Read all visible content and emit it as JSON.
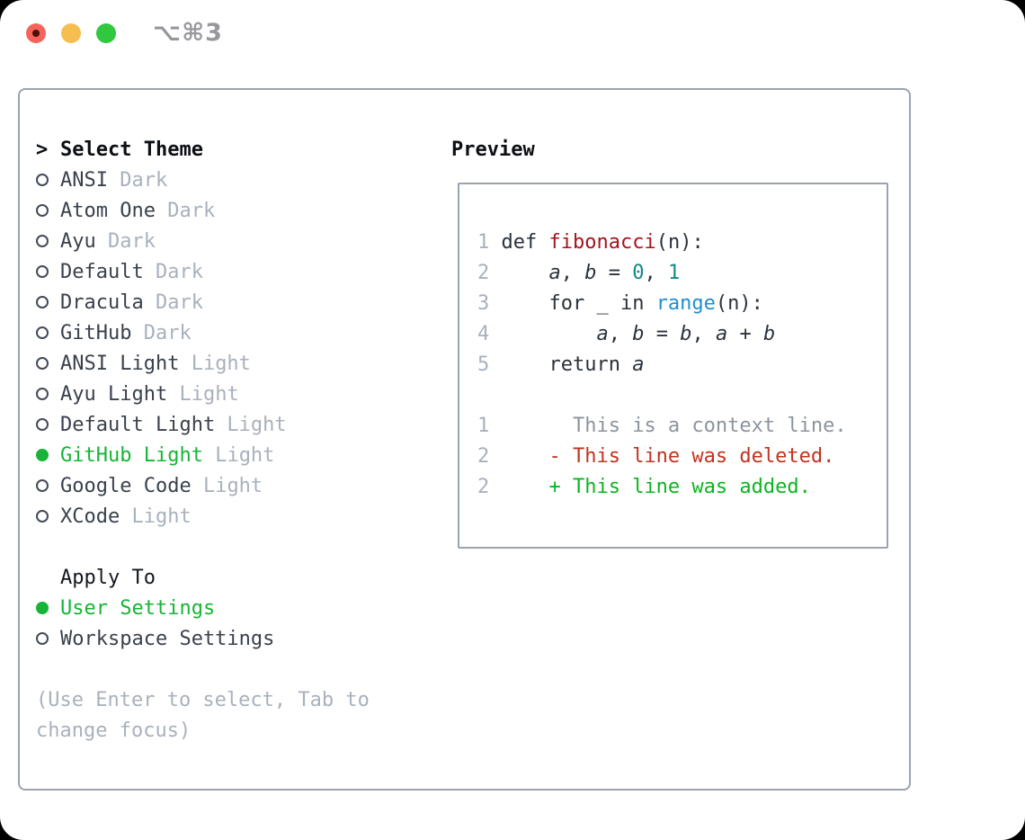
{
  "window": {
    "title": "⌥⌘3"
  },
  "titlebar": {
    "buttons": [
      {
        "name": "close-button"
      },
      {
        "name": "minimize-button"
      },
      {
        "name": "zoom-button"
      }
    ]
  },
  "theme_selector": {
    "prompt": ">",
    "title": "Select Theme",
    "items": [
      {
        "name": "ANSI",
        "variant": "Dark",
        "selected": false
      },
      {
        "name": "Atom One",
        "variant": "Dark",
        "selected": false
      },
      {
        "name": "Ayu",
        "variant": "Dark",
        "selected": false
      },
      {
        "name": "Default",
        "variant": "Dark",
        "selected": false
      },
      {
        "name": "Dracula",
        "variant": "Dark",
        "selected": false
      },
      {
        "name": "GitHub",
        "variant": "Dark",
        "selected": false
      },
      {
        "name": "ANSI Light",
        "variant": "Light",
        "selected": false
      },
      {
        "name": "Ayu Light",
        "variant": "Light",
        "selected": false
      },
      {
        "name": "Default Light",
        "variant": "Light",
        "selected": false
      },
      {
        "name": "GitHub Light",
        "variant": "Light",
        "selected": true
      },
      {
        "name": "Google Code",
        "variant": "Light",
        "selected": false
      },
      {
        "name": "XCode",
        "variant": "Light",
        "selected": false
      }
    ]
  },
  "apply_to": {
    "title": "Apply To",
    "options": [
      {
        "label": "User Settings",
        "selected": true
      },
      {
        "label": "Workspace Settings",
        "selected": false
      }
    ]
  },
  "help_text": "(Use Enter to select, Tab to change focus)",
  "preview": {
    "title": "Preview",
    "lines": [
      {
        "num": "1",
        "tokens": [
          {
            "t": "def ",
            "c": "d"
          },
          {
            "t": "fibonacci",
            "c": "fn"
          },
          {
            "t": "(n):",
            "c": "d"
          }
        ]
      },
      {
        "num": "2",
        "tokens": [
          {
            "t": "    ",
            "c": "d"
          },
          {
            "t": "a",
            "c": "var"
          },
          {
            "t": ", ",
            "c": "d"
          },
          {
            "t": "b",
            "c": "var"
          },
          {
            "t": " = ",
            "c": "d"
          },
          {
            "t": "0",
            "c": "num"
          },
          {
            "t": ", ",
            "c": "d"
          },
          {
            "t": "1",
            "c": "num"
          }
        ]
      },
      {
        "num": "3",
        "tokens": [
          {
            "t": "    for _ in ",
            "c": "d"
          },
          {
            "t": "range",
            "c": "bi"
          },
          {
            "t": "(n):",
            "c": "d"
          }
        ]
      },
      {
        "num": "4",
        "tokens": [
          {
            "t": "        ",
            "c": "d"
          },
          {
            "t": "a",
            "c": "var"
          },
          {
            "t": ", ",
            "c": "d"
          },
          {
            "t": "b",
            "c": "var"
          },
          {
            "t": " = ",
            "c": "d"
          },
          {
            "t": "b",
            "c": "var"
          },
          {
            "t": ", ",
            "c": "d"
          },
          {
            "t": "a",
            "c": "var"
          },
          {
            "t": " + ",
            "c": "d"
          },
          {
            "t": "b",
            "c": "var"
          }
        ]
      },
      {
        "num": "5",
        "tokens": [
          {
            "t": "    return ",
            "c": "d"
          },
          {
            "t": "a",
            "c": "var"
          }
        ]
      },
      {
        "num": "",
        "tokens": []
      },
      {
        "num": "1",
        "tokens": [
          {
            "t": "      This is a context line.",
            "c": "ctx"
          }
        ]
      },
      {
        "num": "2",
        "tokens": [
          {
            "t": "    - This line was deleted.",
            "c": "del"
          }
        ]
      },
      {
        "num": "2",
        "tokens": [
          {
            "t": "    + This line was added.",
            "c": "add"
          }
        ]
      }
    ]
  },
  "colors": {
    "selection_green": "#17b437",
    "added_green": "#0bb520",
    "deleted_red": "#c23320",
    "function_red": "#a3161d",
    "number_teal": "#158787",
    "builtin_blue": "#1f8fce",
    "muted_gray": "#a9b1bd",
    "border_gray": "#9aa4ae",
    "traffic_red": "#f4645a",
    "traffic_yellow": "#f6bd4f",
    "traffic_green": "#31c73f"
  }
}
